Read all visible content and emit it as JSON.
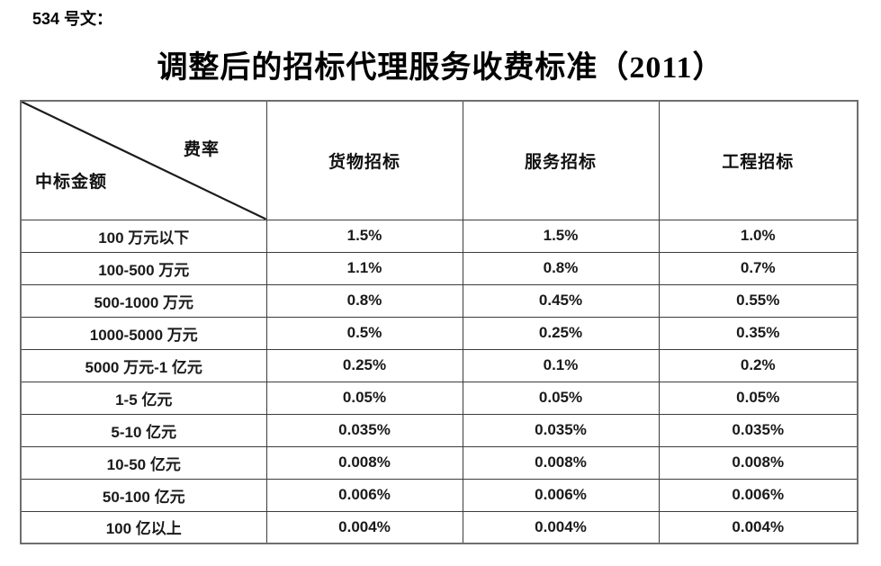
{
  "page": {
    "doc_label": "534 号文：",
    "title": "调整后的招标代理服务收费标准（2011）"
  },
  "table": {
    "corner": {
      "top_right": "费率",
      "bottom_left": "中标金额"
    },
    "columns": [
      "货物招标",
      "服务招标",
      "工程招标"
    ],
    "rows": [
      {
        "amount": "100 万元以下",
        "values": [
          "1.5%",
          "1.5%",
          "1.0%"
        ]
      },
      {
        "amount": "100-500 万元",
        "values": [
          "1.1%",
          "0.8%",
          "0.7%"
        ]
      },
      {
        "amount": "500-1000 万元",
        "values": [
          "0.8%",
          "0.45%",
          "0.55%"
        ]
      },
      {
        "amount": "1000-5000 万元",
        "values": [
          "0.5%",
          "0.25%",
          "0.35%"
        ]
      },
      {
        "amount": "5000 万元-1 亿元",
        "values": [
          "0.25%",
          "0.1%",
          "0.2%"
        ]
      },
      {
        "amount": "1-5 亿元",
        "values": [
          "0.05%",
          "0.05%",
          "0.05%"
        ]
      },
      {
        "amount": "5-10 亿元",
        "values": [
          "0.035%",
          "0.035%",
          "0.035%"
        ]
      },
      {
        "amount": "10-50 亿元",
        "values": [
          "0.008%",
          "0.008%",
          "0.008%"
        ]
      },
      {
        "amount": "50-100 亿元",
        "values": [
          "0.006%",
          "0.006%",
          "0.006%"
        ]
      },
      {
        "amount": "100 亿以上",
        "values": [
          "0.004%",
          "0.004%",
          "0.004%"
        ]
      }
    ]
  }
}
